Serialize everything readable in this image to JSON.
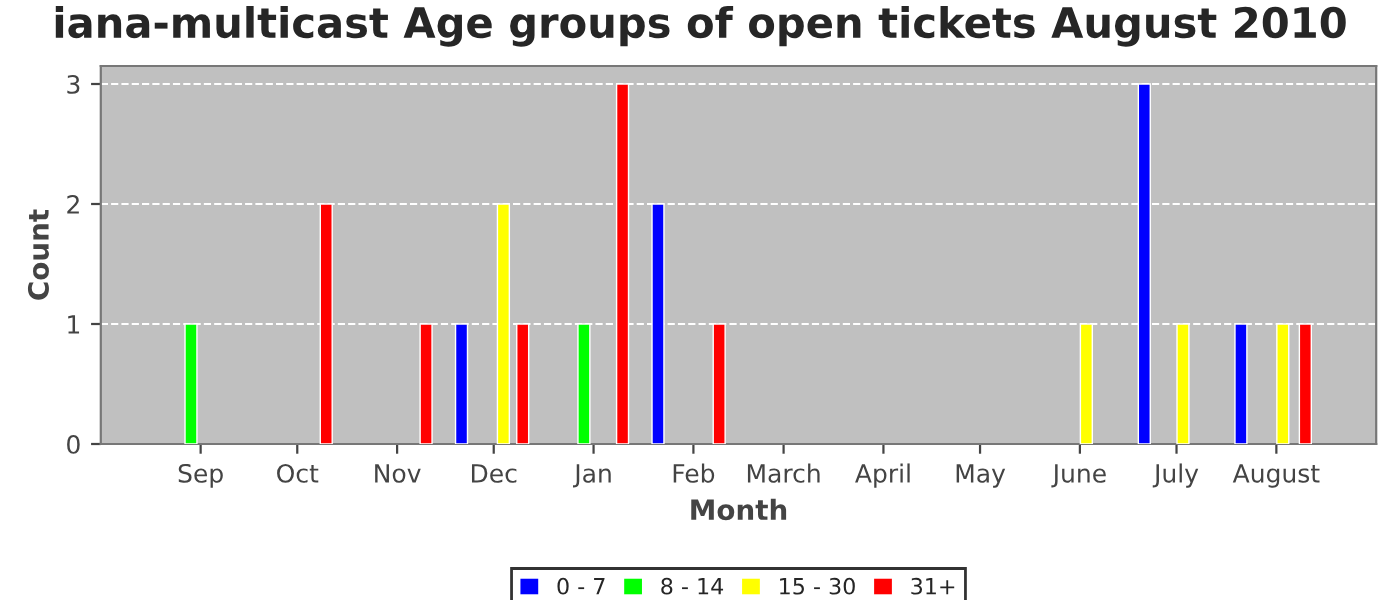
{
  "chart_data": {
    "type": "bar",
    "title": "iana-multicast Age groups of open tickets August 2010",
    "xlabel": "Month",
    "ylabel": "Count",
    "series": [
      {
        "name": "0 - 7",
        "color": "#0000ff",
        "x": [
          "2009-11-21",
          "2010-01-21",
          "2010-06-21",
          "2010-07-21"
        ],
        "values": [
          1,
          2,
          3,
          1
        ]
      },
      {
        "name": "8 - 14",
        "color": "#00ff00",
        "x": [
          "2009-08-29",
          "2009-12-29"
        ],
        "values": [
          1,
          1
        ]
      },
      {
        "name": "15 - 30",
        "color": "#ffff00",
        "x": [
          "2009-12-04",
          "2010-06-03",
          "2010-07-03",
          "2010-08-03"
        ],
        "values": [
          2,
          1,
          1,
          1
        ]
      },
      {
        "name": "31+",
        "color": "#ff0000",
        "x": [
          "2009-10-10",
          "2009-11-10",
          "2009-12-10",
          "2010-01-10",
          "2010-02-09",
          "2010-08-10"
        ],
        "values": [
          2,
          1,
          1,
          3,
          1,
          1
        ]
      }
    ],
    "xlim": [
      "2009-08-01",
      "2010-09-01"
    ],
    "xticks": [
      {
        "value": "2009-09-01",
        "label": "Sep"
      },
      {
        "value": "2009-10-01",
        "label": "Oct"
      },
      {
        "value": "2009-11-01",
        "label": "Nov"
      },
      {
        "value": "2009-12-01",
        "label": "Dec"
      },
      {
        "value": "2010-01-01",
        "label": "Jan"
      },
      {
        "value": "2010-02-01",
        "label": "Feb"
      },
      {
        "value": "2010-03-01",
        "label": "March"
      },
      {
        "value": "2010-04-01",
        "label": "April"
      },
      {
        "value": "2010-05-01",
        "label": "May"
      },
      {
        "value": "2010-06-01",
        "label": "June"
      },
      {
        "value": "2010-07-01",
        "label": "July"
      },
      {
        "value": "2010-08-01",
        "label": "August"
      }
    ],
    "ylim": [
      0,
      3.15
    ],
    "yticks": [
      0,
      1,
      2,
      3
    ],
    "grid": "y",
    "legend": "bottom"
  }
}
